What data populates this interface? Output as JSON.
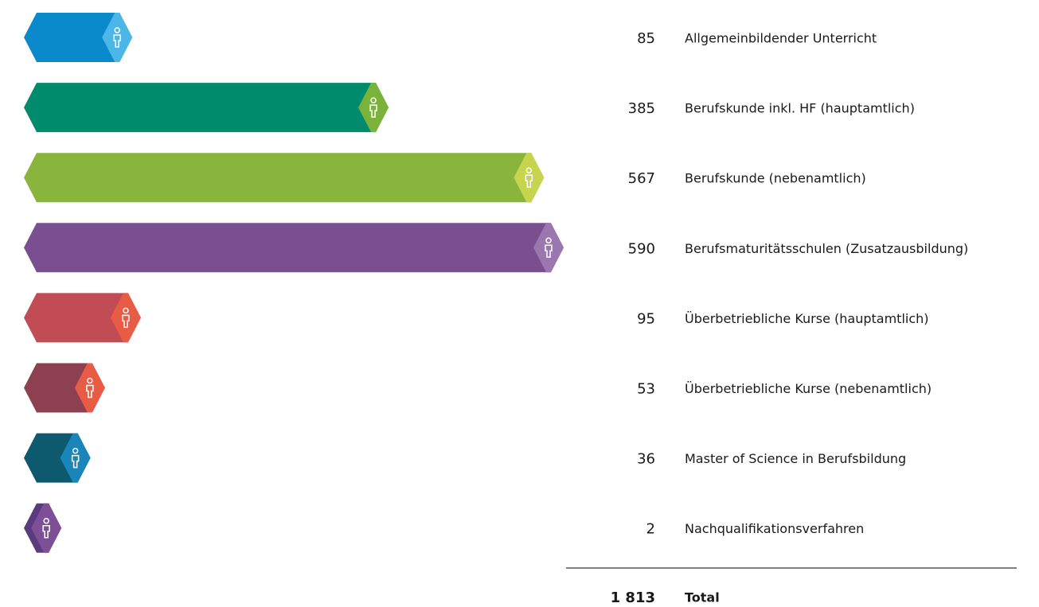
{
  "chart_data": {
    "type": "bar",
    "categories": [
      "Allgemeinbildender Unterricht",
      "Berufskunde inkl. HF (hauptamtlich)",
      "Berufskunde (nebenamtlich)",
      "Berufsmaturitätsschulen (Zusatzausbildung)",
      "Überbetriebliche Kurse (hauptamtlich)",
      "Überbetriebliche Kurse (nebenamtlich)",
      "Master of Science in Berufsbildung",
      "Nachqualifikationsverfahren"
    ],
    "values": [
      85,
      385,
      567,
      590,
      95,
      53,
      36,
      2
    ],
    "colors": [
      "#0a8acb",
      "#008c6c",
      "#8ab53c",
      "#7a4f8f",
      "#c14c55",
      "#8d4150",
      "#0d5a6e",
      "#5b3b7d"
    ],
    "tip_colors": [
      "#4cb6e6",
      "#7bb33a",
      "#c6d44e",
      "#9a77ae",
      "#e85b44",
      "#e85b44",
      "#1a85b8",
      "#7c4f96"
    ],
    "total": {
      "name": "Total",
      "value": 1813,
      "value_label": "1 813"
    }
  }
}
